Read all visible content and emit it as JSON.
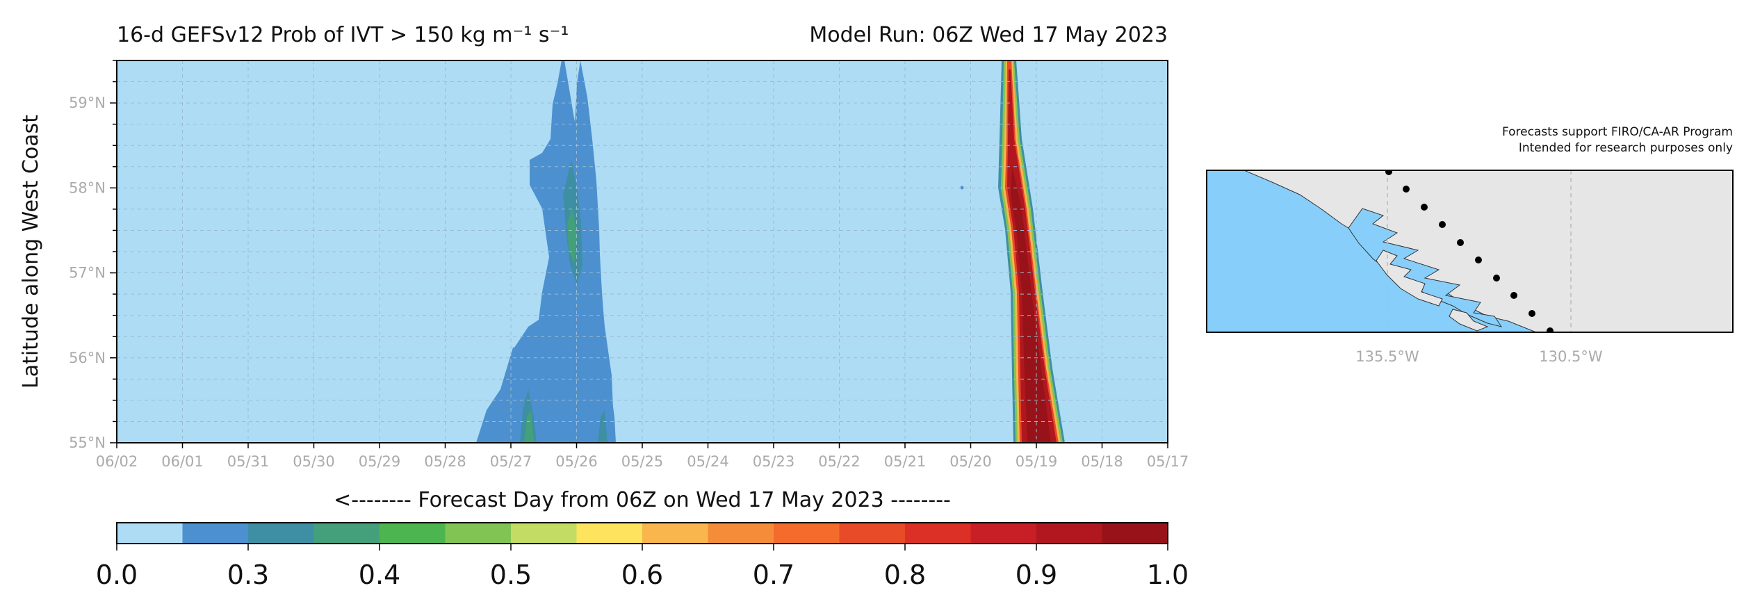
{
  "chart_data": [
    {
      "type": "heatmap",
      "title": "16-d GEFSv12 Prob of IVT > 150 kg m⁻¹ s⁻¹",
      "subtitle": "Model Run: 06Z Wed 17 May 2023",
      "xlabel": "<-------- Forecast Day from 06Z on Wed 17 May 2023 --------",
      "ylabel": "Latitude along West Coast",
      "x_ticks": [
        "06/02",
        "06/01",
        "05/31",
        "05/30",
        "05/29",
        "05/28",
        "05/27",
        "05/26",
        "05/25",
        "05/24",
        "05/23",
        "05/22",
        "05/21",
        "05/20",
        "05/19",
        "05/18",
        "05/17"
      ],
      "x_direction": "reversed",
      "y_ticks": [
        "55°N",
        "56°N",
        "57°N",
        "58°N",
        "59°N"
      ],
      "ylim": [
        55,
        59.5
      ],
      "grid": true,
      "colorbar": {
        "levels": [
          0.0,
          0.05,
          0.1,
          0.15,
          0.2,
          0.25,
          0.3,
          0.35,
          0.4,
          0.45,
          0.5,
          0.55,
          0.6,
          0.65,
          0.7,
          0.75,
          0.8,
          0.85,
          0.9,
          0.95,
          1.0
        ],
        "colors": [
          "#aedcf4",
          "#4c90d0",
          "#3f8fa4",
          "#43a07a",
          "#4db54f",
          "#82c453",
          "#c3dc64",
          "#fde35e",
          "#f8b64d",
          "#f58c3a",
          "#f36c2c",
          "#e84b27",
          "#dc2f26",
          "#c71f25",
          "#b0171f",
          "#981319"
        ],
        "tick_labels": [
          "0.0",
          "0.3",
          "0.4",
          "0.5",
          "0.6",
          "0.7",
          "0.8",
          "0.9",
          "1.0"
        ],
        "tick_values": [
          0.0,
          0.3,
          0.4,
          0.5,
          0.6,
          0.7,
          0.8,
          0.9,
          1.0
        ]
      },
      "features": [
        {
          "name": "ar-band-may19",
          "day": "05/19",
          "lat_range": [
            55,
            59.5
          ],
          "peak": 0.98
        },
        {
          "name": "weak-band-may26",
          "day": "05/26",
          "lat_range": [
            55,
            59.5
          ],
          "peak": 0.45
        }
      ]
    },
    {
      "type": "map",
      "x_ticks": [
        "135.5°W",
        "130.5°W"
      ],
      "ocean_color": "#87cefa",
      "land_color": "#e6e6e6",
      "station_count": 10
    }
  ],
  "notes": {
    "line1": "Forecasts support FIRO/CA-AR Program",
    "line2": "Intended for research purposes only"
  }
}
